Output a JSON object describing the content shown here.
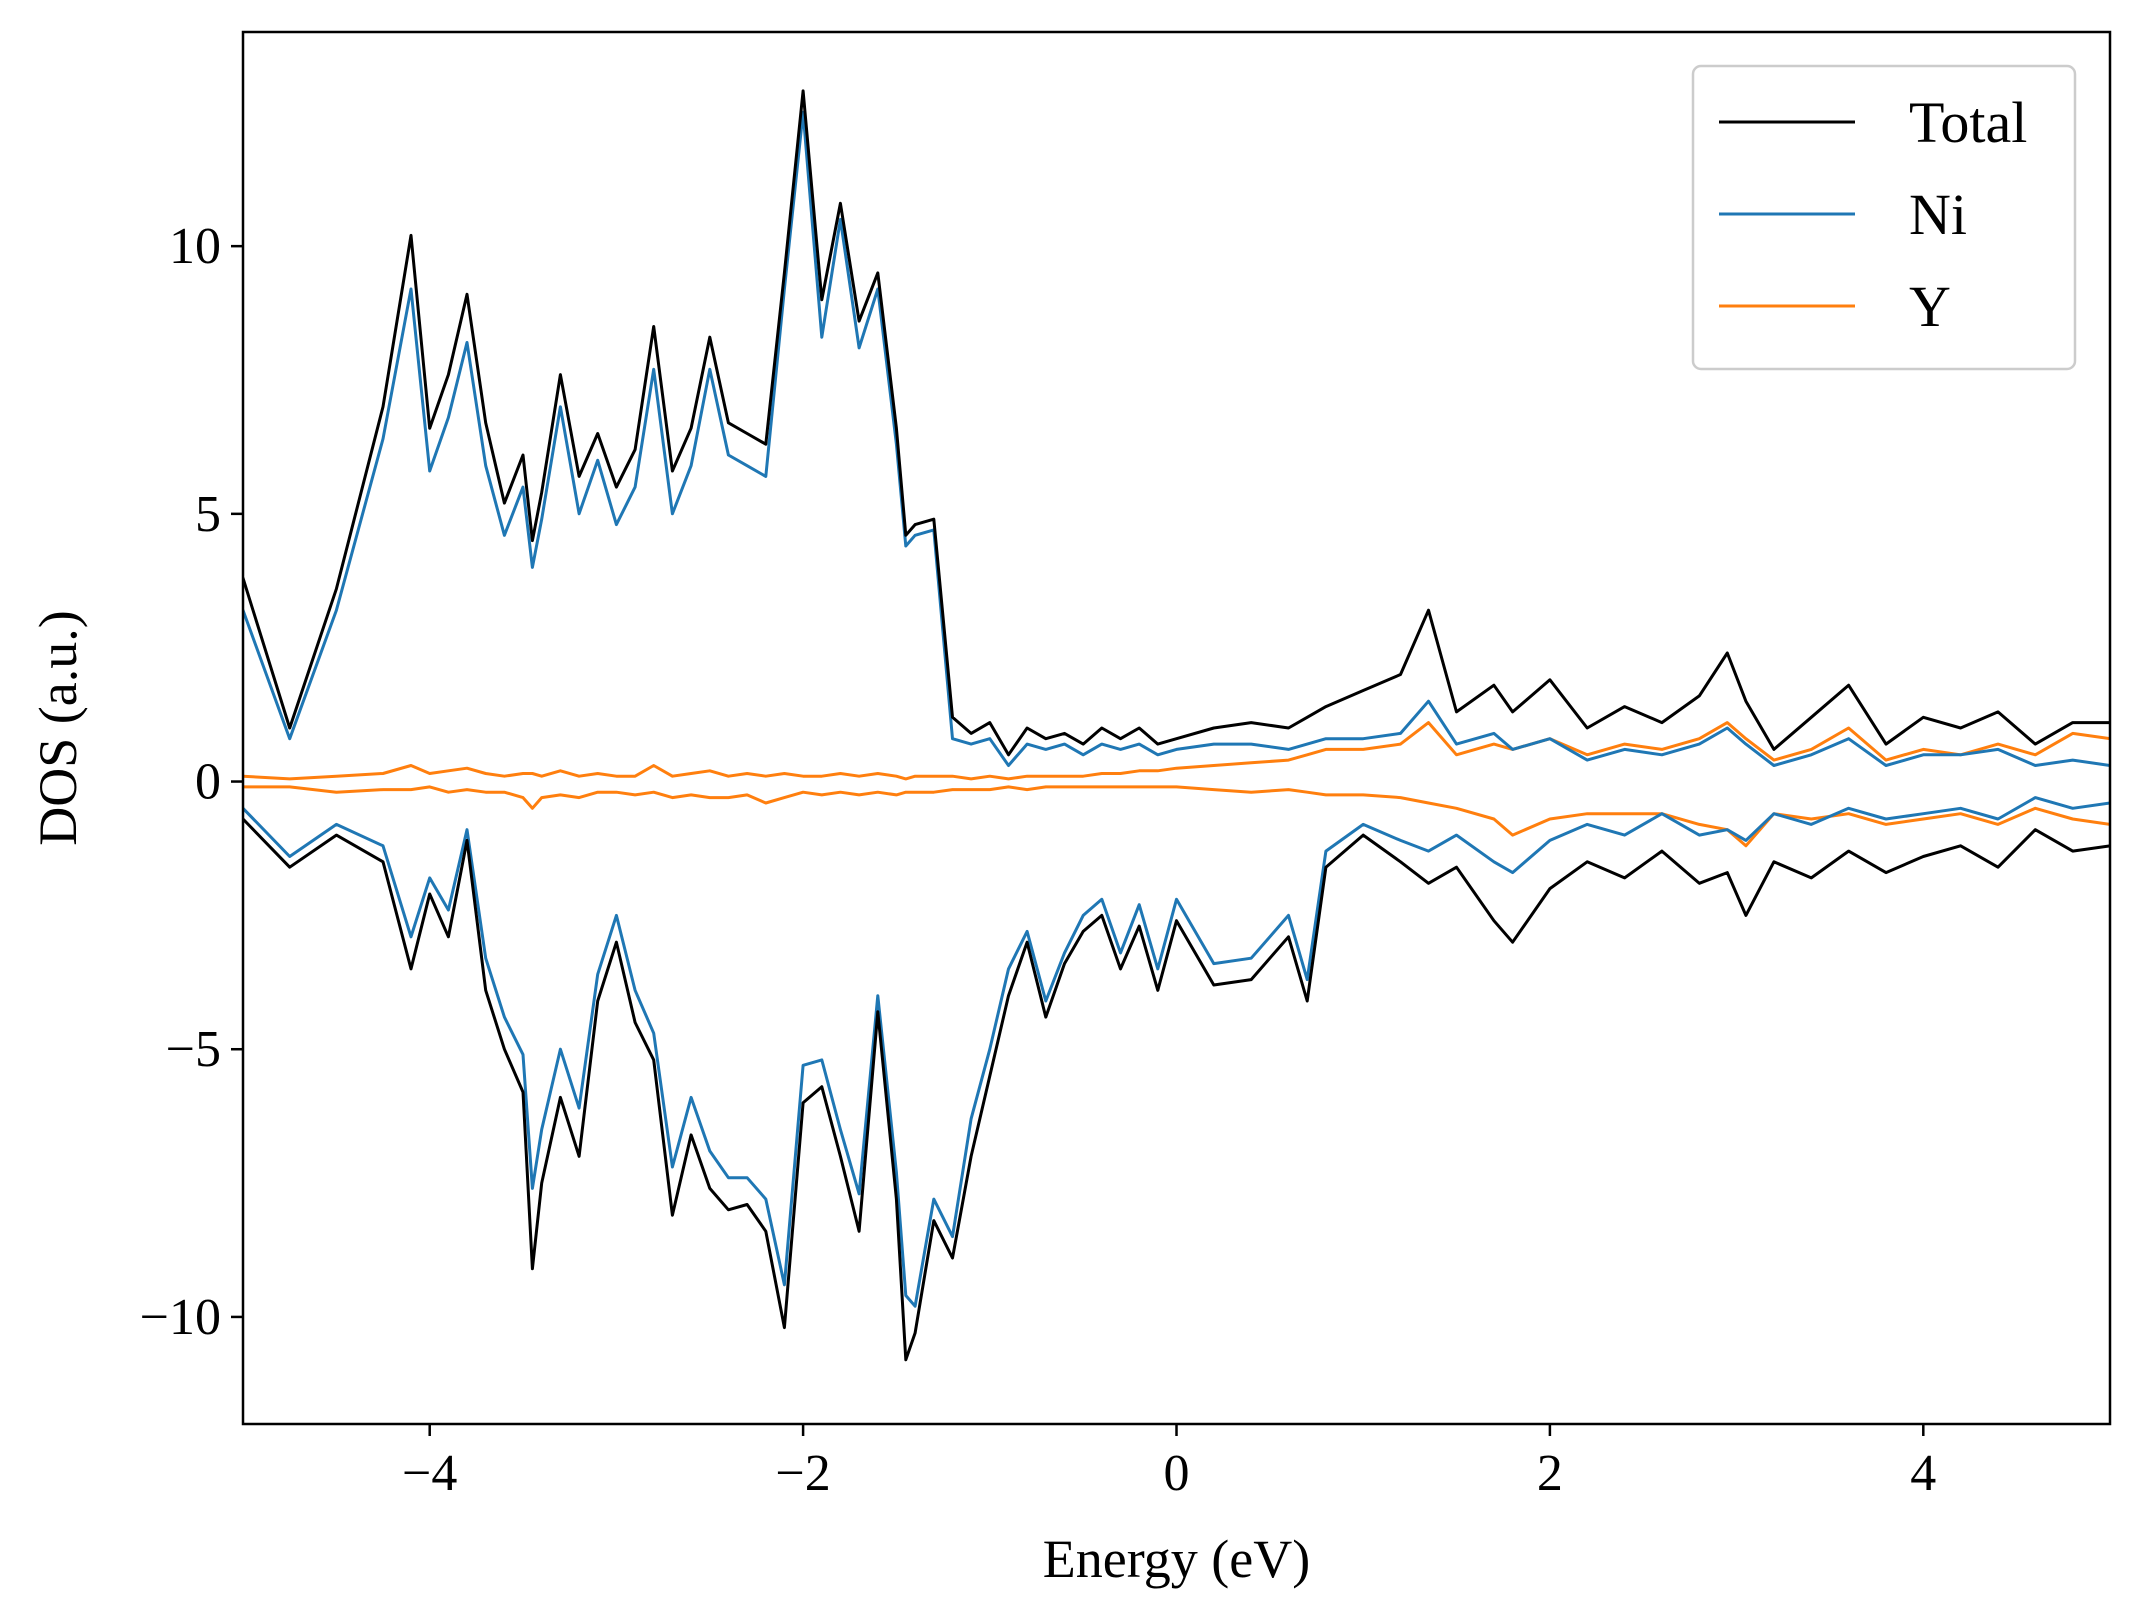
{
  "chart_data": {
    "type": "line",
    "xlabel": "Energy (eV)",
    "ylabel": "DOS (a.u.)",
    "xlim": [
      -5,
      5
    ],
    "ylim": [
      -12,
      14
    ],
    "xticks": [
      -4,
      -2,
      0,
      2,
      4
    ],
    "xtick_labels": [
      "−4",
      "−2",
      "0",
      "2",
      "4"
    ],
    "yticks": [
      -10,
      -5,
      0,
      5,
      10
    ],
    "ytick_labels": [
      "−10",
      "−5",
      "0",
      "5",
      "10"
    ],
    "grid": false,
    "legend_position": "top-right",
    "x": [
      -5.0,
      -4.75,
      -4.5,
      -4.25,
      -4.1,
      -4.0,
      -3.9,
      -3.8,
      -3.7,
      -3.6,
      -3.5,
      -3.45,
      -3.4,
      -3.3,
      -3.2,
      -3.1,
      -3.0,
      -2.9,
      -2.8,
      -2.7,
      -2.6,
      -2.5,
      -2.4,
      -2.3,
      -2.2,
      -2.1,
      -2.0,
      -1.9,
      -1.8,
      -1.7,
      -1.6,
      -1.5,
      -1.45,
      -1.4,
      -1.3,
      -1.2,
      -1.1,
      -1.0,
      -0.9,
      -0.8,
      -0.7,
      -0.6,
      -0.5,
      -0.4,
      -0.3,
      -0.2,
      -0.1,
      0.0,
      0.2,
      0.4,
      0.6,
      0.7,
      0.8,
      1.0,
      1.2,
      1.35,
      1.5,
      1.7,
      1.8,
      2.0,
      2.2,
      2.4,
      2.6,
      2.8,
      2.95,
      3.05,
      3.2,
      3.4,
      3.6,
      3.8,
      4.0,
      4.2,
      4.4,
      4.6,
      4.8,
      5.0
    ],
    "series": [
      {
        "name": "Total",
        "color": "#000000",
        "up": [
          3.8,
          1.0,
          3.6,
          7.0,
          10.2,
          6.6,
          7.6,
          9.1,
          6.7,
          5.2,
          6.1,
          4.5,
          5.4,
          7.6,
          5.7,
          6.5,
          5.5,
          6.2,
          8.5,
          5.8,
          6.6,
          8.3,
          6.7,
          6.5,
          6.3,
          9.5,
          12.9,
          9.0,
          10.8,
          8.6,
          9.5,
          6.6,
          4.6,
          4.8,
          4.9,
          1.2,
          0.9,
          1.1,
          0.5,
          1.0,
          0.8,
          0.9,
          0.7,
          1.0,
          0.8,
          1.0,
          0.7,
          0.8,
          1.0,
          1.1,
          1.0,
          1.2,
          1.4,
          1.7,
          2.0,
          3.2,
          1.3,
          1.8,
          1.3,
          1.9,
          1.0,
          1.4,
          1.1,
          1.6,
          2.4,
          1.5,
          0.6,
          1.2,
          1.8,
          0.7,
          1.2,
          1.0,
          1.3,
          0.7,
          1.1,
          1.1
        ],
        "down": [
          -0.7,
          -1.6,
          -1.0,
          -1.5,
          -3.5,
          -2.1,
          -2.9,
          -1.1,
          -3.9,
          -5.0,
          -5.8,
          -9.1,
          -7.5,
          -5.9,
          -7.0,
          -4.1,
          -3.0,
          -4.5,
          -5.2,
          -8.1,
          -6.6,
          -7.6,
          -8.0,
          -7.9,
          -8.4,
          -10.2,
          -6.0,
          -5.7,
          -7.0,
          -8.4,
          -4.3,
          -7.8,
          -10.8,
          -10.3,
          -8.2,
          -8.9,
          -7.0,
          -5.5,
          -4.0,
          -3.0,
          -4.4,
          -3.4,
          -2.8,
          -2.5,
          -3.5,
          -2.7,
          -3.9,
          -2.6,
          -3.8,
          -3.7,
          -2.9,
          -4.1,
          -1.6,
          -1.0,
          -1.5,
          -1.9,
          -1.6,
          -2.6,
          -3.0,
          -2.0,
          -1.5,
          -1.8,
          -1.3,
          -1.9,
          -1.7,
          -2.5,
          -1.5,
          -1.8,
          -1.3,
          -1.7,
          -1.4,
          -1.2,
          -1.6,
          -0.9,
          -1.3,
          -1.2
        ]
      },
      {
        "name": "Ni",
        "color": "#1f77b4",
        "up": [
          3.2,
          0.8,
          3.2,
          6.4,
          9.2,
          5.8,
          6.8,
          8.2,
          5.9,
          4.6,
          5.5,
          4.0,
          4.9,
          7.0,
          5.0,
          6.0,
          4.8,
          5.5,
          7.7,
          5.0,
          5.9,
          7.7,
          6.1,
          5.9,
          5.7,
          9.2,
          12.5,
          8.3,
          10.5,
          8.1,
          9.2,
          6.3,
          4.4,
          4.6,
          4.7,
          0.8,
          0.7,
          0.8,
          0.3,
          0.7,
          0.6,
          0.7,
          0.5,
          0.7,
          0.6,
          0.7,
          0.5,
          0.6,
          0.7,
          0.7,
          0.6,
          0.7,
          0.8,
          0.8,
          0.9,
          1.5,
          0.7,
          0.9,
          0.6,
          0.8,
          0.4,
          0.6,
          0.5,
          0.7,
          1.0,
          0.7,
          0.3,
          0.5,
          0.8,
          0.3,
          0.5,
          0.5,
          0.6,
          0.3,
          0.4,
          0.3
        ],
        "down": [
          -0.5,
          -1.4,
          -0.8,
          -1.2,
          -2.9,
          -1.8,
          -2.4,
          -0.9,
          -3.3,
          -4.4,
          -5.1,
          -7.6,
          -6.5,
          -5.0,
          -6.1,
          -3.6,
          -2.5,
          -3.9,
          -4.7,
          -7.2,
          -5.9,
          -6.9,
          -7.4,
          -7.4,
          -7.8,
          -9.4,
          -5.3,
          -5.2,
          -6.5,
          -7.7,
          -4.0,
          -7.3,
          -9.6,
          -9.8,
          -7.8,
          -8.5,
          -6.3,
          -5.0,
          -3.5,
          -2.8,
          -4.1,
          -3.2,
          -2.5,
          -2.2,
          -3.2,
          -2.3,
          -3.5,
          -2.2,
          -3.4,
          -3.3,
          -2.5,
          -3.7,
          -1.3,
          -0.8,
          -1.1,
          -1.3,
          -1.0,
          -1.5,
          -1.7,
          -1.1,
          -0.8,
          -1.0,
          -0.6,
          -1.0,
          -0.9,
          -1.1,
          -0.6,
          -0.8,
          -0.5,
          -0.7,
          -0.6,
          -0.5,
          -0.7,
          -0.3,
          -0.5,
          -0.4
        ]
      },
      {
        "name": "Y",
        "color": "#ff7f0e",
        "up": [
          0.1,
          0.05,
          0.1,
          0.15,
          0.3,
          0.15,
          0.2,
          0.25,
          0.15,
          0.1,
          0.15,
          0.15,
          0.1,
          0.2,
          0.1,
          0.15,
          0.1,
          0.1,
          0.3,
          0.1,
          0.15,
          0.2,
          0.1,
          0.15,
          0.1,
          0.15,
          0.1,
          0.1,
          0.15,
          0.1,
          0.15,
          0.1,
          0.05,
          0.1,
          0.1,
          0.1,
          0.05,
          0.1,
          0.05,
          0.1,
          0.1,
          0.1,
          0.1,
          0.15,
          0.15,
          0.2,
          0.2,
          0.25,
          0.3,
          0.35,
          0.4,
          0.5,
          0.6,
          0.6,
          0.7,
          1.1,
          0.5,
          0.7,
          0.6,
          0.8,
          0.5,
          0.7,
          0.6,
          0.8,
          1.1,
          0.8,
          0.4,
          0.6,
          1.0,
          0.4,
          0.6,
          0.5,
          0.7,
          0.5,
          0.9,
          0.8
        ],
        "down": [
          -0.1,
          -0.1,
          -0.2,
          -0.15,
          -0.15,
          -0.1,
          -0.2,
          -0.15,
          -0.2,
          -0.2,
          -0.3,
          -0.5,
          -0.3,
          -0.25,
          -0.3,
          -0.2,
          -0.2,
          -0.25,
          -0.2,
          -0.3,
          -0.25,
          -0.3,
          -0.3,
          -0.25,
          -0.4,
          -0.3,
          -0.2,
          -0.25,
          -0.2,
          -0.25,
          -0.2,
          -0.25,
          -0.2,
          -0.2,
          -0.2,
          -0.15,
          -0.15,
          -0.15,
          -0.1,
          -0.15,
          -0.1,
          -0.1,
          -0.1,
          -0.1,
          -0.1,
          -0.1,
          -0.1,
          -0.1,
          -0.15,
          -0.2,
          -0.15,
          -0.2,
          -0.25,
          -0.25,
          -0.3,
          -0.4,
          -0.5,
          -0.7,
          -1.0,
          -0.7,
          -0.6,
          -0.6,
          -0.6,
          -0.8,
          -0.9,
          -1.2,
          -0.6,
          -0.7,
          -0.6,
          -0.8,
          -0.7,
          -0.6,
          -0.8,
          -0.5,
          -0.7,
          -0.8
        ]
      }
    ]
  }
}
